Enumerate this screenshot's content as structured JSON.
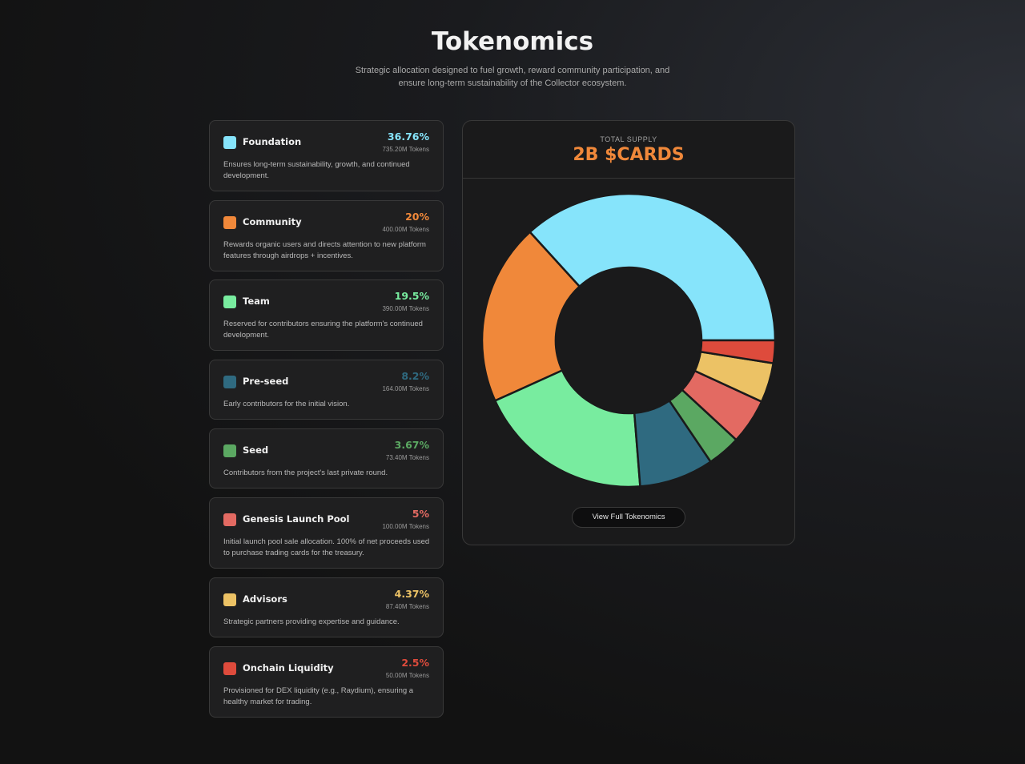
{
  "header": {
    "title": "Tokenomics",
    "subtitle": "Strategic allocation designed to fuel growth, reward community participation, and ensure long-term sustainability of the Collector ecosystem."
  },
  "allocations": [
    {
      "name": "Foundation",
      "percent_label": "36.76%",
      "tokens": "735.20M Tokens",
      "description": "Ensures long-term sustainability, growth, and continued development.",
      "color": "#86e4fb"
    },
    {
      "name": "Community",
      "percent_label": "20%",
      "tokens": "400.00M Tokens",
      "description": "Rewards organic users and directs attention to new platform features through airdrops + incentives.",
      "color": "#f0883a"
    },
    {
      "name": "Team",
      "percent_label": "19.5%",
      "tokens": "390.00M Tokens",
      "description": "Reserved for contributors ensuring the platform's continued development.",
      "color": "#78ec9f"
    },
    {
      "name": "Pre-seed",
      "percent_label": "8.2%",
      "tokens": "164.00M Tokens",
      "description": "Early contributors for the initial vision.",
      "color": "#2f6a80"
    },
    {
      "name": "Seed",
      "percent_label": "3.67%",
      "tokens": "73.40M Tokens",
      "description": "Contributors from the project's last private round.",
      "color": "#5ba862"
    },
    {
      "name": "Genesis Launch Pool",
      "percent_label": "5%",
      "tokens": "100.00M Tokens",
      "description": "Initial launch pool sale allocation. 100% of net proceeds used to purchase trading cards for the treasury.",
      "color": "#e36a62"
    },
    {
      "name": "Advisors",
      "percent_label": "4.37%",
      "tokens": "87.40M Tokens",
      "description": "Strategic partners providing expertise and guidance.",
      "color": "#ecc265"
    },
    {
      "name": "Onchain Liquidity",
      "percent_label": "2.5%",
      "tokens": "50.00M Tokens",
      "description": "Provisioned for DEX liquidity (e.g., Raydium), ensuring a healthy market for trading.",
      "color": "#de4b3c"
    }
  ],
  "panel": {
    "supply_label": "TOTAL SUPPLY",
    "supply_value": "2B $CARDS",
    "button_label": "View Full Tokenomics"
  },
  "chart_data": {
    "type": "pie",
    "donut": true,
    "title": "",
    "start": "3 o'clock",
    "direction": "counterclockwise",
    "slices": [
      {
        "name": "Foundation",
        "value": 36.76,
        "color": "#86e4fb"
      },
      {
        "name": "Community",
        "value": 20,
        "color": "#f0883a"
      },
      {
        "name": "Team",
        "value": 19.5,
        "color": "#78ec9f"
      },
      {
        "name": "Pre-seed",
        "value": 8.2,
        "color": "#2f6a80"
      },
      {
        "name": "Seed",
        "value": 3.67,
        "color": "#5ba862"
      },
      {
        "name": "Genesis Launch Pool",
        "value": 5,
        "color": "#e36a62"
      },
      {
        "name": "Advisors",
        "value": 4.37,
        "color": "#ecc265"
      },
      {
        "name": "Onchain Liquidity",
        "value": 2.5,
        "color": "#de4b3c"
      }
    ]
  }
}
